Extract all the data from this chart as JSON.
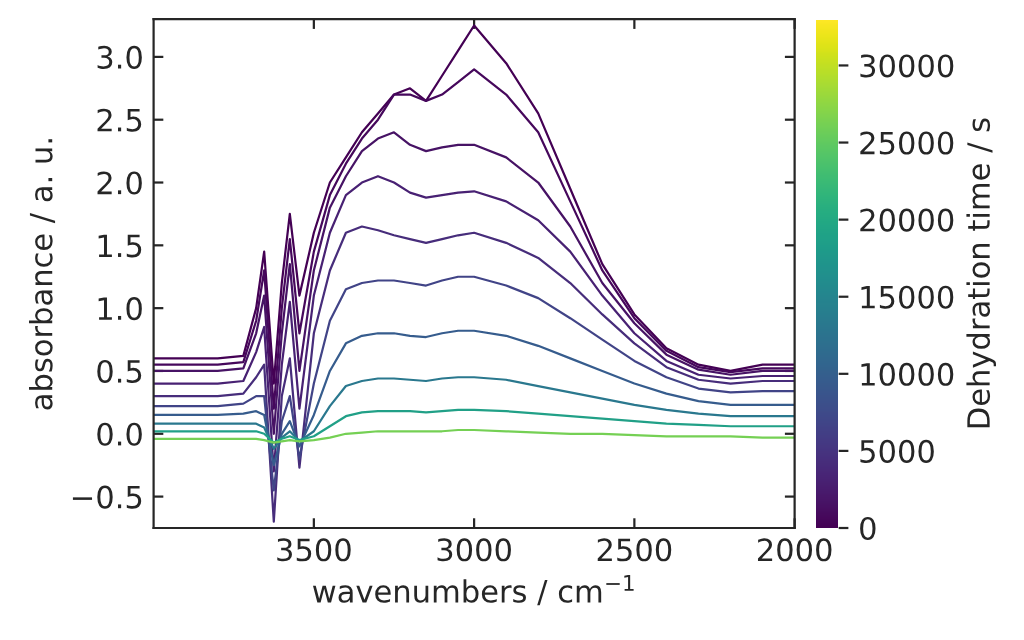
{
  "chart_data": {
    "type": "line",
    "xlabel": "wavenumbers / cm$^{−1}$",
    "ylabel": "absorbance / a. u.",
    "clabel": "Dehydration time / s",
    "x": [
      4000,
      3800,
      3720,
      3680,
      3655,
      3625,
      3600,
      3575,
      3545,
      3500,
      3450,
      3400,
      3350,
      3300,
      3250,
      3200,
      3150,
      3100,
      3050,
      3000,
      2900,
      2800,
      2700,
      2600,
      2500,
      2400,
      2300,
      2200,
      2100,
      2000
    ],
    "series": [
      {
        "color": "#440154",
        "values": [
          0.6,
          0.6,
          0.62,
          1.0,
          1.45,
          0.4,
          1.2,
          1.75,
          1.1,
          1.6,
          2.0,
          2.2,
          2.4,
          2.55,
          2.7,
          2.75,
          2.65,
          2.85,
          3.05,
          3.25,
          2.95,
          2.55,
          1.95,
          1.35,
          0.95,
          0.68,
          0.55,
          0.5,
          0.55,
          0.55
        ]
      },
      {
        "color": "#46085c",
        "values": [
          0.55,
          0.55,
          0.57,
          0.9,
          1.3,
          0.2,
          1.0,
          1.55,
          0.8,
          1.45,
          1.9,
          2.15,
          2.35,
          2.5,
          2.7,
          2.7,
          2.65,
          2.7,
          2.8,
          2.9,
          2.7,
          2.4,
          1.85,
          1.3,
          0.92,
          0.66,
          0.53,
          0.49,
          0.52,
          0.52
        ]
      },
      {
        "color": "#471365",
        "values": [
          0.5,
          0.5,
          0.52,
          0.8,
          1.1,
          0.0,
          0.8,
          1.35,
          0.5,
          1.3,
          1.8,
          2.05,
          2.25,
          2.35,
          2.4,
          2.3,
          2.25,
          2.28,
          2.3,
          2.3,
          2.2,
          2.0,
          1.65,
          1.2,
          0.88,
          0.63,
          0.51,
          0.47,
          0.5,
          0.5
        ]
      },
      {
        "color": "#482173",
        "values": [
          0.4,
          0.4,
          0.42,
          0.65,
          0.85,
          -0.3,
          0.55,
          1.05,
          0.2,
          1.1,
          1.6,
          1.9,
          2.0,
          2.05,
          2.0,
          1.92,
          1.88,
          1.9,
          1.92,
          1.93,
          1.85,
          1.7,
          1.45,
          1.1,
          0.8,
          0.58,
          0.47,
          0.44,
          0.46,
          0.46
        ]
      },
      {
        "color": "#472d7b",
        "values": [
          0.3,
          0.3,
          0.32,
          0.45,
          0.55,
          -0.7,
          0.3,
          0.6,
          -0.27,
          0.8,
          1.3,
          1.6,
          1.65,
          1.62,
          1.58,
          1.55,
          1.52,
          1.55,
          1.58,
          1.6,
          1.52,
          1.4,
          1.2,
          0.95,
          0.72,
          0.53,
          0.43,
          0.4,
          0.42,
          0.42
        ]
      },
      {
        "color": "#414487",
        "values": [
          0.22,
          0.22,
          0.24,
          0.3,
          0.3,
          -0.45,
          0.1,
          0.3,
          -0.2,
          0.4,
          0.9,
          1.15,
          1.2,
          1.22,
          1.22,
          1.2,
          1.18,
          1.22,
          1.25,
          1.25,
          1.18,
          1.08,
          0.92,
          0.75,
          0.58,
          0.45,
          0.36,
          0.33,
          0.34,
          0.34
        ]
      },
      {
        "color": "#365c8d",
        "values": [
          0.15,
          0.15,
          0.16,
          0.18,
          0.15,
          -0.25,
          0.0,
          0.1,
          -0.1,
          0.15,
          0.5,
          0.72,
          0.78,
          0.8,
          0.8,
          0.78,
          0.77,
          0.8,
          0.82,
          0.82,
          0.78,
          0.7,
          0.6,
          0.5,
          0.4,
          0.32,
          0.26,
          0.23,
          0.23,
          0.23
        ]
      },
      {
        "color": "#2a788e",
        "values": [
          0.08,
          0.08,
          0.08,
          0.08,
          0.05,
          -0.12,
          -0.03,
          0.02,
          -0.06,
          0.02,
          0.22,
          0.38,
          0.42,
          0.44,
          0.44,
          0.43,
          0.42,
          0.44,
          0.45,
          0.45,
          0.43,
          0.38,
          0.33,
          0.28,
          0.23,
          0.19,
          0.16,
          0.14,
          0.14,
          0.14
        ]
      },
      {
        "color": "#21a087",
        "values": [
          0.02,
          0.02,
          0.02,
          0.02,
          0.0,
          -0.07,
          -0.04,
          -0.02,
          -0.05,
          -0.02,
          0.06,
          0.14,
          0.17,
          0.18,
          0.18,
          0.18,
          0.17,
          0.18,
          0.19,
          0.19,
          0.18,
          0.16,
          0.14,
          0.12,
          0.1,
          0.08,
          0.07,
          0.06,
          0.06,
          0.06
        ]
      },
      {
        "color": "#75d054",
        "values": [
          -0.04,
          -0.04,
          -0.04,
          -0.04,
          -0.05,
          -0.07,
          -0.06,
          -0.05,
          -0.06,
          -0.05,
          -0.03,
          0.0,
          0.01,
          0.02,
          0.02,
          0.02,
          0.02,
          0.02,
          0.03,
          0.03,
          0.02,
          0.01,
          0.0,
          0.0,
          -0.01,
          -0.02,
          -0.02,
          -0.02,
          -0.03,
          -0.03
        ]
      }
    ],
    "xlim": [
      4000,
      2000
    ],
    "xticks": [
      3500,
      3000,
      2500,
      2000
    ],
    "ylim": [
      -0.75,
      3.3
    ],
    "yticks": [
      {
        "value": -0.5,
        "label": "−0.5"
      },
      {
        "value": 0.0,
        "label": "0.0"
      },
      {
        "value": 0.5,
        "label": "0.5"
      },
      {
        "value": 1.0,
        "label": "1.0"
      },
      {
        "value": 1.5,
        "label": "1.5"
      },
      {
        "value": 2.0,
        "label": "2.0"
      },
      {
        "value": 2.5,
        "label": "2.5"
      },
      {
        "value": 3.0,
        "label": "3.0"
      }
    ],
    "clim": [
      0,
      33000
    ],
    "cticks": [
      0,
      5000,
      10000,
      15000,
      20000,
      25000,
      30000
    ],
    "grid": false,
    "legend": false
  }
}
